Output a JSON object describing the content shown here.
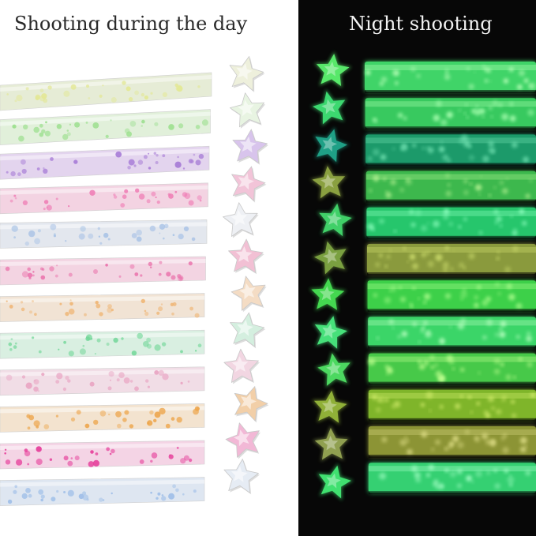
{
  "day_panel": {
    "title": "Shooting during the day",
    "background": "#ffffff",
    "strips": [
      {
        "base": "#e6ecd6",
        "dots": "#e3e896"
      },
      {
        "base": "#e1f0da",
        "dots": "#9fe092"
      },
      {
        "base": "#e3d4ee",
        "dots": "#a77cd6"
      },
      {
        "base": "#f3d3e2",
        "dots": "#ef7bb4"
      },
      {
        "base": "#e3e7ee",
        "dots": "#a9c3e6"
      },
      {
        "base": "#f3d4e2",
        "dots": "#ea72ab"
      },
      {
        "base": "#f1e3d4",
        "dots": "#efb676"
      },
      {
        "base": "#d9efe1",
        "dots": "#6fd696"
      },
      {
        "base": "#f1dde6",
        "dots": "#e9a7c4"
      },
      {
        "base": "#f3e3cf",
        "dots": "#eda54b"
      },
      {
        "base": "#f4d4e5",
        "dots": "#e6409b"
      },
      {
        "base": "#dee6f1",
        "dots": "#9ebee8"
      }
    ],
    "stars": [
      "#eef0dc",
      "#e8f4e2",
      "#d8c4ec",
      "#f2c4d8",
      "#eef0f4",
      "#f2c0d4",
      "#f4dcc4",
      "#d4efdf",
      "#f2d6e2",
      "#f2cfa8",
      "#f2b8d6",
      "#e6ecf4"
    ]
  },
  "night_panel": {
    "title": "Night shooting",
    "background": "#070707",
    "strips": [
      {
        "base": "#3fd468",
        "glow": "#b8ffb8"
      },
      {
        "base": "#37c95e",
        "glow": "#a8ffb0"
      },
      {
        "base": "#1f9a6a",
        "glow": "#70e0b0"
      },
      {
        "base": "#3cb84e",
        "glow": "#b0f090"
      },
      {
        "base": "#25c66c",
        "glow": "#90ffc0"
      },
      {
        "base": "#8a9a3c",
        "glow": "#d0e070"
      },
      {
        "base": "#3ed04a",
        "glow": "#b0ff90"
      },
      {
        "base": "#3ad568",
        "glow": "#b8ffc0"
      },
      {
        "base": "#47c94a",
        "glow": "#c0ff90"
      },
      {
        "base": "#7fb52a",
        "glow": "#d8f070"
      },
      {
        "base": "#8c9436",
        "glow": "#d8d880"
      },
      {
        "base": "#36d072",
        "glow": "#a8ffc8"
      }
    ],
    "stars": [
      "#58e86a",
      "#3cd870",
      "#1fa086",
      "#8aa040",
      "#40d068",
      "#7aa040",
      "#44d850",
      "#46e07a",
      "#4cd860",
      "#90b038",
      "#90a050",
      "#40e070"
    ]
  }
}
